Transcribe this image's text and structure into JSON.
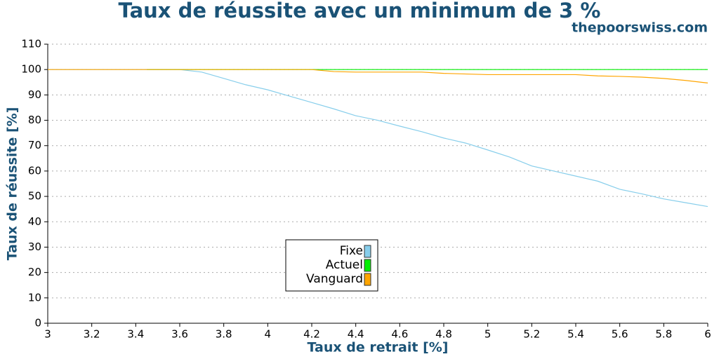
{
  "chart_data": {
    "type": "line",
    "title": "Taux de réussite avec un minimum de 3 %",
    "subtitle": "thepoorswiss.com",
    "xlabel": "Taux de retrait [%]",
    "ylabel": "Taux de réussite [%]",
    "xlim": [
      3,
      6
    ],
    "ylim": [
      0,
      110
    ],
    "xticks": [
      3,
      3.2,
      3.4,
      3.6,
      3.8,
      4,
      4.2,
      4.4,
      4.6,
      4.8,
      5,
      5.2,
      5.4,
      5.6,
      5.8,
      6
    ],
    "yticks": [
      0,
      10,
      20,
      30,
      40,
      50,
      60,
      70,
      80,
      90,
      100,
      110
    ],
    "grid": true,
    "legend_loc": "lower center",
    "series": [
      {
        "name": "Fixe",
        "color": "#87ceeb",
        "x": [
          3,
          3.1,
          3.2,
          3.3,
          3.4,
          3.5,
          3.6,
          3.7,
          3.8,
          3.9,
          4,
          4.1,
          4.2,
          4.3,
          4.4,
          4.5,
          4.6,
          4.7,
          4.8,
          4.9,
          5,
          5.1,
          5.2,
          5.3,
          5.4,
          5.5,
          5.6,
          5.7,
          5.8,
          5.9,
          6
        ],
        "values": [
          100,
          100,
          100,
          100,
          100,
          100,
          100,
          99,
          96.5,
          94,
          92,
          89.5,
          87,
          84.5,
          81.8,
          80,
          77.7,
          75.5,
          73,
          71,
          68.3,
          65.5,
          62,
          60,
          58,
          56,
          52.8,
          51,
          49,
          47.5,
          46
        ]
      },
      {
        "name": "Actuel",
        "color": "#00ee00",
        "x": [
          3.45,
          6
        ],
        "values": [
          100,
          100
        ]
      },
      {
        "name": "Vanguard",
        "color": "#ffa500",
        "x": [
          3,
          3.2,
          3.4,
          3.6,
          3.8,
          4,
          4.2,
          4.3,
          4.4,
          4.6,
          4.7,
          4.8,
          5,
          5.2,
          5.4,
          5.5,
          5.6,
          5.7,
          5.8,
          5.9,
          6
        ],
        "values": [
          100,
          100,
          100,
          100,
          100,
          100,
          100,
          99.2,
          99,
          99,
          99,
          98.5,
          98,
          98,
          98,
          97.5,
          97.3,
          97,
          96.5,
          95.7,
          94.7
        ]
      }
    ]
  }
}
